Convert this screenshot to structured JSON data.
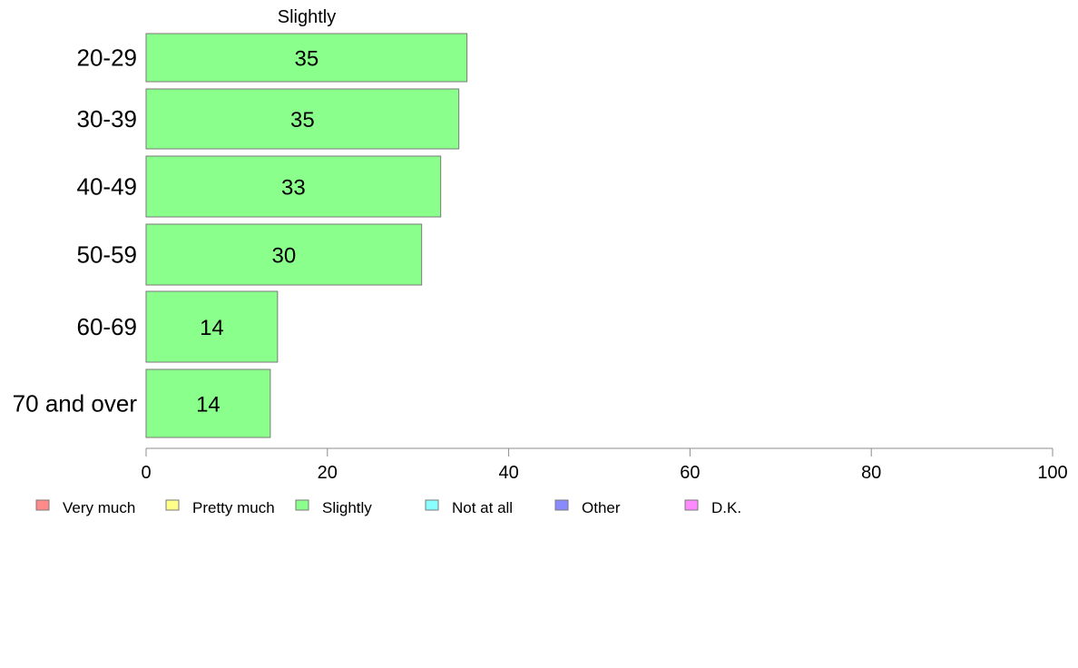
{
  "chart_data": {
    "type": "bar",
    "orientation": "horizontal",
    "title": "Slightly",
    "categories": [
      "20-29",
      "30-39",
      "40-49",
      "50-59",
      "60-69",
      "70 and over"
    ],
    "values": [
      35,
      35,
      33,
      30,
      14,
      14
    ],
    "bar_lengths": [
      35.4,
      34.5,
      32.5,
      30.4,
      14.5,
      13.7
    ],
    "xlim": [
      0,
      100
    ],
    "xticks": [
      0,
      20,
      40,
      60,
      80,
      100
    ],
    "grid": false,
    "legend_placement": "bottom",
    "bar_color": "#8bff8b",
    "legend": [
      {
        "label": "Very much",
        "color": "#ff8a8a"
      },
      {
        "label": "Pretty much",
        "color": "#ffff8a"
      },
      {
        "label": "Slightly",
        "color": "#8bff8b"
      },
      {
        "label": "Not at all",
        "color": "#8affff"
      },
      {
        "label": "Other",
        "color": "#8a8aff"
      },
      {
        "label": "D.K.",
        "color": "#ff8aff"
      }
    ]
  }
}
